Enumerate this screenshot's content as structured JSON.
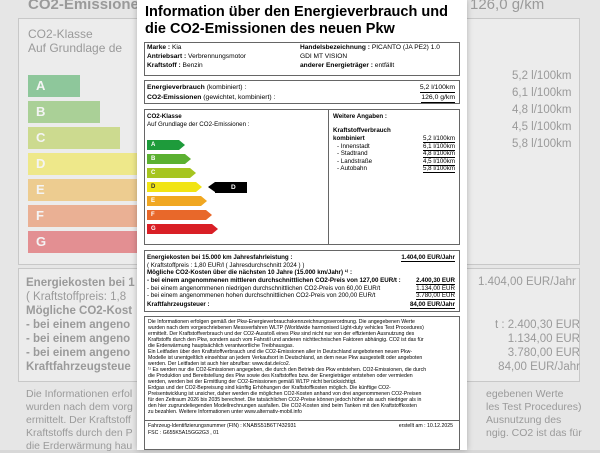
{
  "backdrop": {
    "heading": "CO2-Emissione",
    "heading_right": "126,0 g/km",
    "class_title": "CO2-Klasse",
    "class_subtitle": "Auf Grundlage de",
    "right_values": [
      "5,2 l/100km",
      "6,1 l/100km",
      "4,8 l/100km",
      "4,5 l/100km",
      "5,8 l/100km"
    ],
    "costs_line1": "Energiekosten bei 1",
    "costs_line2": "( Kraftstoffpreis:  1,8",
    "costs_line3": "Mögliche CO2-Kost",
    "costs_line4": "- bei einem angeno",
    "costs_line5": "- bei einem angeno",
    "costs_line6": "- bei einem angeno",
    "costs_line7": "Kraftfahrzeugsteue",
    "right_cost_main": "1.404,00 EUR/Jahr",
    "right_costs": [
      "t :   2.400,30 EUR",
      "1.134,00 EUR",
      "3.780,00 EUR",
      "84,00 EUR/Jahr"
    ],
    "info_left": [
      "Die Informationen erfol",
      "wurden nach dem vorg",
      "ermittelt. Der Kraftstoff",
      "Kraftstoffs durch den P",
      "die Erderwärmung hau"
    ],
    "info_right": [
      "egebenen Werte",
      "les Test Procedures)",
      "Ausnutzung des",
      "ngig. CO2 ist das für"
    ]
  },
  "title": "Information über den Energieverbrauch und die CO2-Emissionen des neuen Pkw",
  "vehicle": {
    "marke_label": "Marke :",
    "marke": "Kia",
    "antrieb_label": "Antriebsart :",
    "antrieb": "Verbrennungsmotor",
    "kraftstoff_label": "Kraftstoff :",
    "kraftstoff": "Benzin",
    "handel_label": "Handelsbezeichnung :",
    "handel": "PICANTO (JA PE2) 1.0 GDI MT VISION",
    "traeger_label": "anderer Energieträger :",
    "traeger": "entfällt"
  },
  "consumption": {
    "energy_label": "Energieverbrauch",
    "energy_note": "(kombiniert)  :",
    "energy_value": "5,2 l/100km",
    "co2_label": "CO2-Emissionen",
    "co2_note": "(gewichtet, kombiniert)  :",
    "co2_value": "126,0 g/km"
  },
  "co2_class": {
    "title": "CO2-Klasse",
    "subtitle": "Auf Grundlage der CO2-Emissionen  :",
    "classes": [
      {
        "letter": "A",
        "color": "#1e9b3b",
        "fill": 0.36
      },
      {
        "letter": "B",
        "color": "#5bb031",
        "fill": 0.42
      },
      {
        "letter": "C",
        "color": "#a6c520",
        "fill": 0.48
      },
      {
        "letter": "D",
        "color": "#f1e414",
        "fill": 0.54
      },
      {
        "letter": "E",
        "color": "#f0a722",
        "fill": 0.6
      },
      {
        "letter": "F",
        "color": "#e8682a",
        "fill": 0.66
      },
      {
        "letter": "G",
        "color": "#d91f26",
        "fill": 0.72
      }
    ],
    "active": "D"
  },
  "weitere": {
    "title": "Weitere Angaben  :",
    "verbrauch_title": "Kraftstoffverbrauch",
    "rows": [
      {
        "label": "kombiniert",
        "value": "5,2 l/100km"
      },
      {
        "label": "-  Innenstadt",
        "value": "6,1 l/100km"
      },
      {
        "label": "-  Stadtrand",
        "value": "4,8 l/100km"
      },
      {
        "label": "-  Landstraße",
        "value": "4,5 l/100km"
      },
      {
        "label": "-  Autobahn",
        "value": "5,8 l/100km"
      }
    ]
  },
  "costs": {
    "energy_label": "Energiekosten bei 15.000 km Jahresfahrleistung  :",
    "energy_value": "1.404,00 EUR/Jahr",
    "price_text": "( Kraftstoffpreis :   1,80 EUR/l  ( Jahresdurchschnitt   2024 ) )",
    "co2_title": "Mögliche CO2-Kosten über die nächsten 10 Jahre (15.000 km/Jahr) ¹⁾ :",
    "lines": [
      {
        "label": "- bei einem angenommenen mittleren durchschnittlichen CO2-Preis von 127,00 EUR/t  :",
        "value": "2.400,30 EUR"
      },
      {
        "label": "- bei einem angenommenen niedrigen durchschnittlichen CO2-Preis von  60,00 EUR/t",
        "value": "1.134,00 EUR"
      },
      {
        "label": "- bei einem angenommenen hohen durchschnittlichen CO2-Preis von 200,00 EUR/t",
        "value": "3.780,00 EUR"
      }
    ],
    "tax_label": "Kraftfahrzeugsteuer  :",
    "tax_value": "84,00 EUR/Jahr"
  },
  "info": [
    "Die Informationen erfolgen gemäß der Pkw-Energieverbrauchskennzeichnungsverordnung. Die angegebenen Werte",
    "wurden nach dem vorgeschriebenen Messverfahren WLTP (Worldwide harmonised Light-duty vehicles Test Procedures)",
    "ermittelt. Der Kraftstoffverbrauch und der CO2-Ausstoß eines Pkw sind nicht nur von der effizienten Ausnutzung des",
    "Kraftstoffs durch den Pkw, sondern auch vom Fahrstil und anderen nichttechnischen Faktoren abhängig. CO2 ist das für",
    "die Erderwärmung hauptsächlich verantwortliche Treibhausgas.",
    "Ein Leitfaden über den Kraftstoffverbrauch und die CO2-Emissionen aller in Deutschland angebotenen neuen Pkw-",
    "Modelle ist unentgeltlich einsehbar an jedem Verkaufsort in Deutschland, an dem neue Pkw ausgestellt oder angeboten",
    "werden. Der Leitfaden ist auch hier abrufbar: www.dat.de/co2.",
    "¹⁾ Es werden nur die CO2-Emissionen angegeben, die durch den Betrieb des Pkw entstehen. CO2-Emissionen, die durch",
    "die Produktion und Bereitstellung des Pkw sowie des Kraftstoffes bzw. der Energieträger entstehen oder vermieden",
    "werden, werden bei der Ermittlung der CO2-Emissionen gemäß WLTP nicht berücksichtigt.",
    "Erdgas und der CO2-Bepreisung sind künftig Erhöhungen der Kraftstoffkosten möglich. Die künftige CO2-",
    "Preisentwicklung ist unsicher, daher werden die möglichen CO2-Kosten anhand von drei angenommenen CO2-Preisen",
    "für den Zeitraum 2026 bis 2035 berechnet. Die tatsächlichen CO2-Preise können jedoch höher als auch niedriger als in",
    "den hier zugrundeliegenden Modellrechnungen ausfallen. Die CO2-Kosten sind beim Tanken mit den Kraftstoffkosten",
    "zu bezahlen. Weitere Informationen unter www.alternativ-mobil.info"
  ],
  "footer": {
    "fin_label": "Fahrzeug-Identifizierungsnummer (FIN) :",
    "fin": "KNABS51B6T7432931",
    "date_label": "erstellt am :",
    "date": "10.12.2025",
    "fsc": "FSC : G655K5A15GG2G3 , 01"
  }
}
